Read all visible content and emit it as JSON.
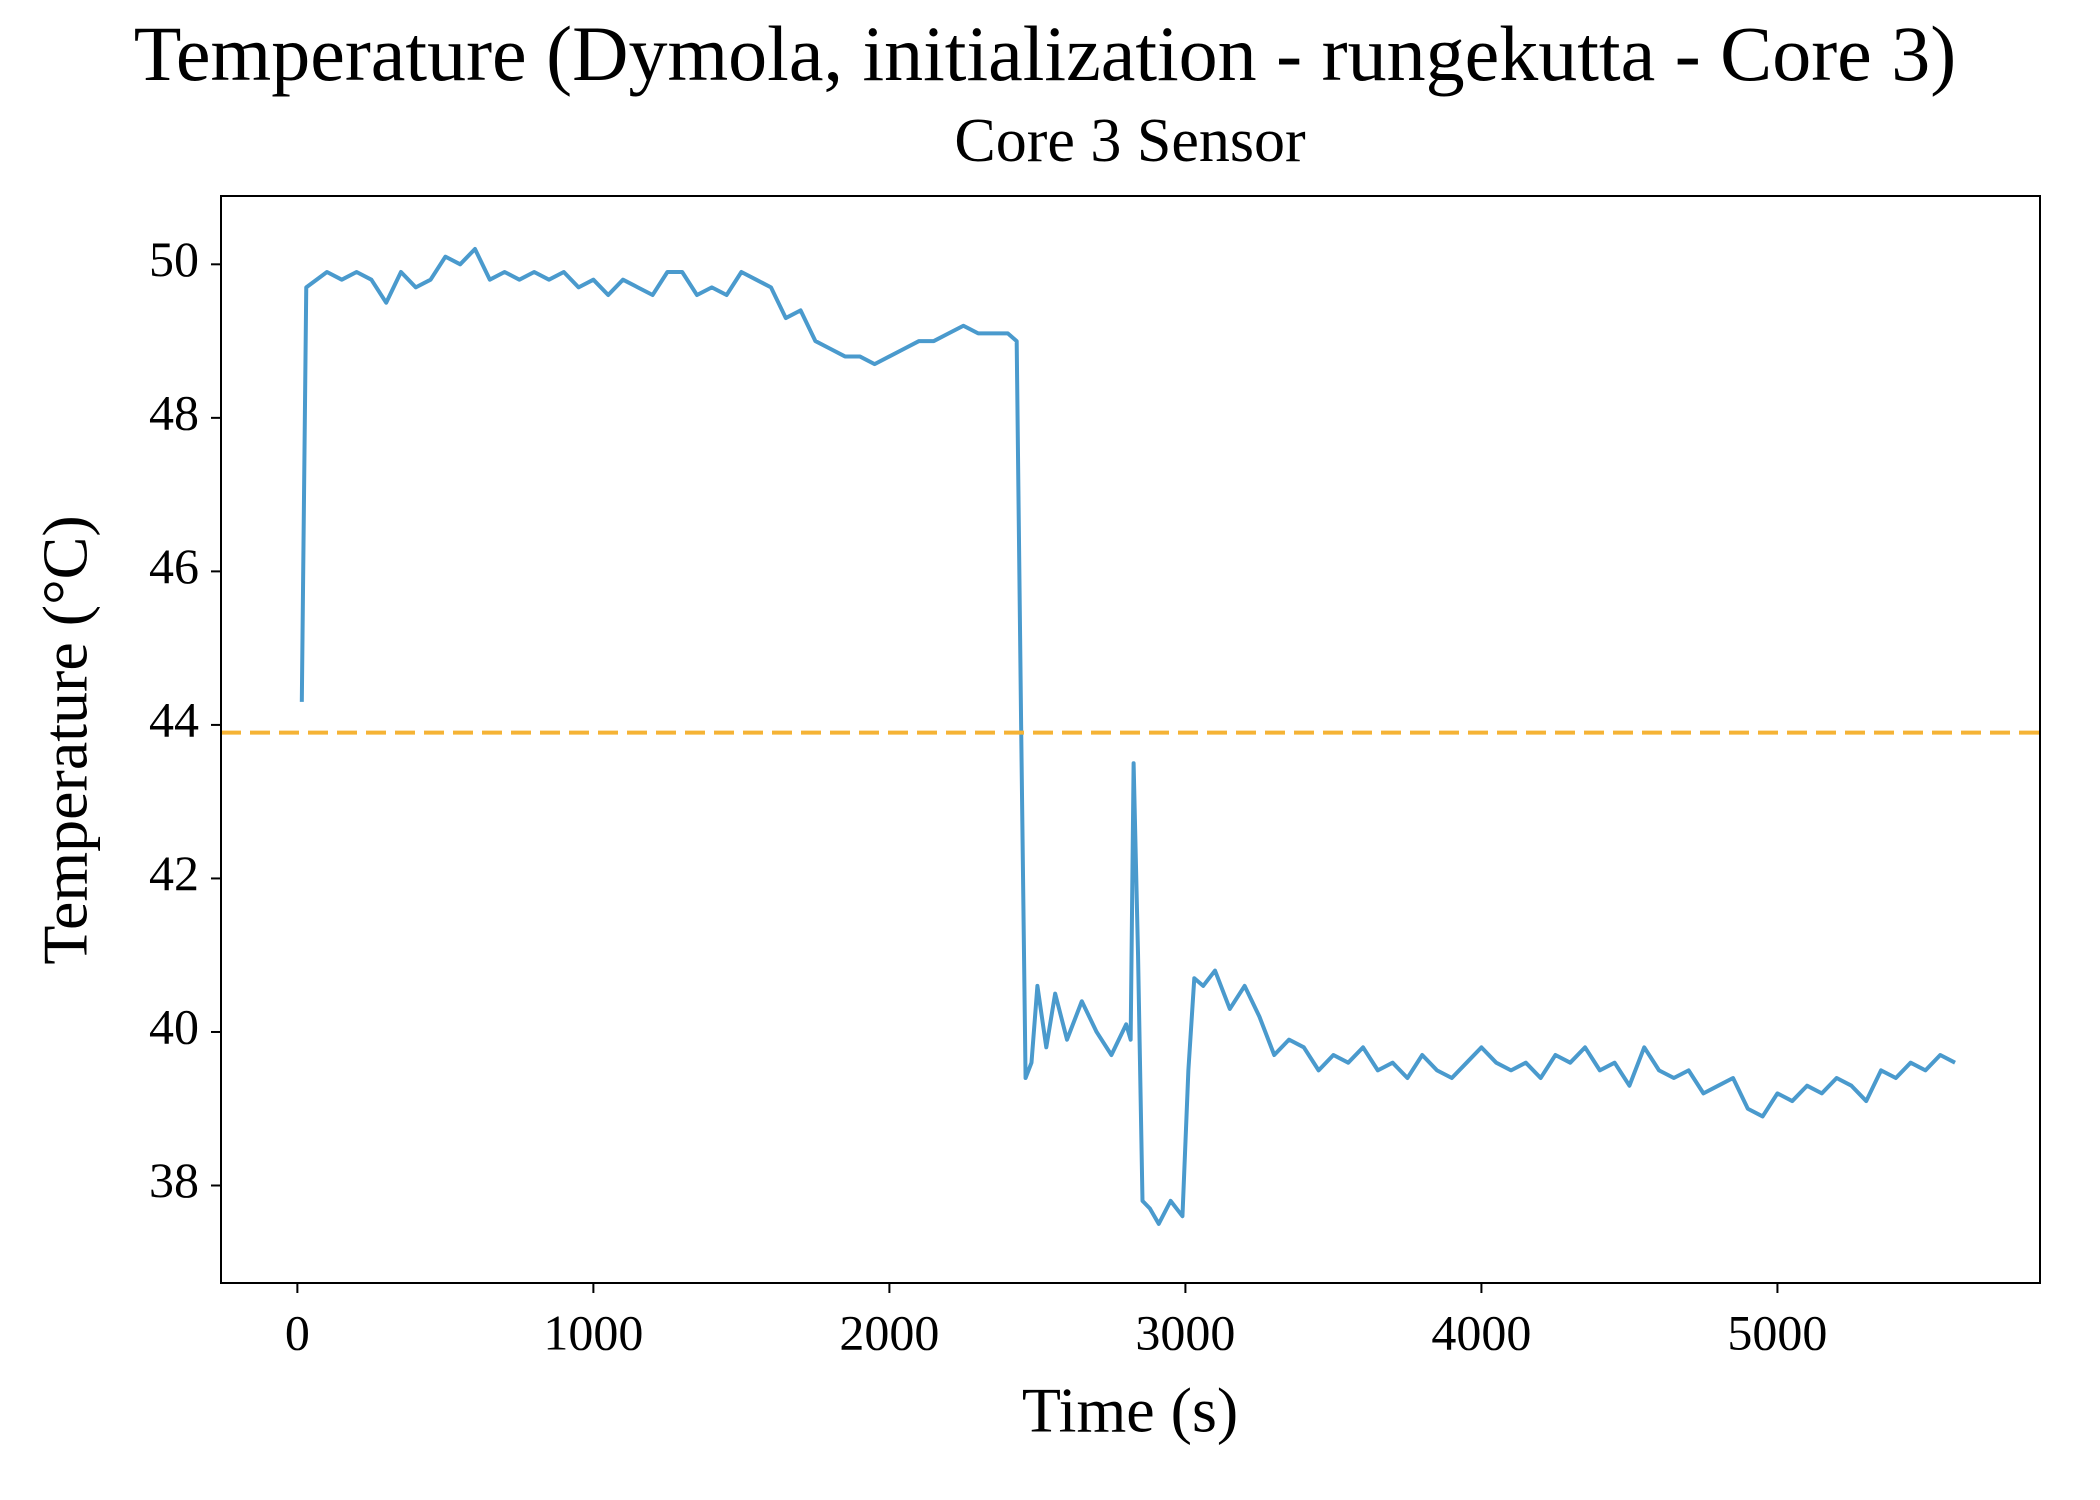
{
  "chart_data": {
    "type": "line",
    "title": "Temperature (Dymola, initialization - rungekutta - Core 3)",
    "subtitle": "Core 3 Sensor",
    "xlabel": "Time (s)",
    "ylabel": "Temperature (°C)",
    "xlim": [
      -258,
      5887
    ],
    "ylim": [
      36.73,
      50.89
    ],
    "xticks": [
      0,
      1000,
      2000,
      3000,
      4000,
      5000
    ],
    "yticks": [
      38,
      40,
      42,
      44,
      46,
      48,
      50
    ],
    "threshold": 43.9,
    "threshold_color": "#f5b335",
    "x": [
      15,
      30,
      100,
      150,
      200,
      250,
      300,
      350,
      400,
      450,
      500,
      550,
      600,
      650,
      700,
      750,
      800,
      850,
      900,
      950,
      1000,
      1050,
      1100,
      1150,
      1200,
      1250,
      1300,
      1350,
      1400,
      1450,
      1500,
      1550,
      1600,
      1650,
      1700,
      1750,
      1800,
      1850,
      1900,
      1950,
      2000,
      2050,
      2100,
      2150,
      2200,
      2250,
      2300,
      2350,
      2400,
      2430,
      2445,
      2460,
      2480,
      2500,
      2530,
      2560,
      2600,
      2650,
      2700,
      2750,
      2800,
      2815,
      2825,
      2840,
      2855,
      2880,
      2910,
      2950,
      2990,
      3010,
      3030,
      3060,
      3100,
      3150,
      3200,
      3250,
      3300,
      3350,
      3400,
      3450,
      3500,
      3550,
      3600,
      3650,
      3700,
      3750,
      3800,
      3850,
      3900,
      3950,
      4000,
      4050,
      4100,
      4150,
      4200,
      4250,
      4300,
      4350,
      4400,
      4450,
      4500,
      4550,
      4600,
      4650,
      4700,
      4750,
      4800,
      4850,
      4900,
      4950,
      5000,
      5050,
      5100,
      5150,
      5200,
      5250,
      5300,
      5350,
      5400,
      5450,
      5500,
      5550,
      5600
    ],
    "series": [
      {
        "color": "#4a9acd",
        "values": [
          44.3,
          49.7,
          49.9,
          49.8,
          49.9,
          49.8,
          49.5,
          49.9,
          49.7,
          49.8,
          50.1,
          50.0,
          50.2,
          49.8,
          49.9,
          49.8,
          49.9,
          49.8,
          49.9,
          49.7,
          49.8,
          49.6,
          49.8,
          49.7,
          49.6,
          49.9,
          49.9,
          49.6,
          49.7,
          49.6,
          49.9,
          49.8,
          49.7,
          49.3,
          49.4,
          49.0,
          48.9,
          48.8,
          48.8,
          48.7,
          48.8,
          48.9,
          49.0,
          49.0,
          49.1,
          49.2,
          49.1,
          49.1,
          49.1,
          49.0,
          44.0,
          39.4,
          39.6,
          40.6,
          39.8,
          40.5,
          39.9,
          40.4,
          40.0,
          39.7,
          40.1,
          39.9,
          43.5,
          41.0,
          37.8,
          37.7,
          37.5,
          37.8,
          37.6,
          39.5,
          40.7,
          40.6,
          40.8,
          40.3,
          40.6,
          40.2,
          39.7,
          39.9,
          39.8,
          39.5,
          39.7,
          39.6,
          39.8,
          39.5,
          39.6,
          39.4,
          39.7,
          39.5,
          39.4,
          39.6,
          39.8,
          39.6,
          39.5,
          39.6,
          39.4,
          39.7,
          39.6,
          39.8,
          39.5,
          39.6,
          39.3,
          39.8,
          39.5,
          39.4,
          39.5,
          39.2,
          39.3,
          39.4,
          39.0,
          38.9,
          39.2,
          39.1,
          39.3,
          39.2,
          39.4,
          39.3,
          39.1,
          39.5,
          39.4,
          39.6,
          39.5,
          39.7,
          39.6
        ]
      }
    ]
  }
}
